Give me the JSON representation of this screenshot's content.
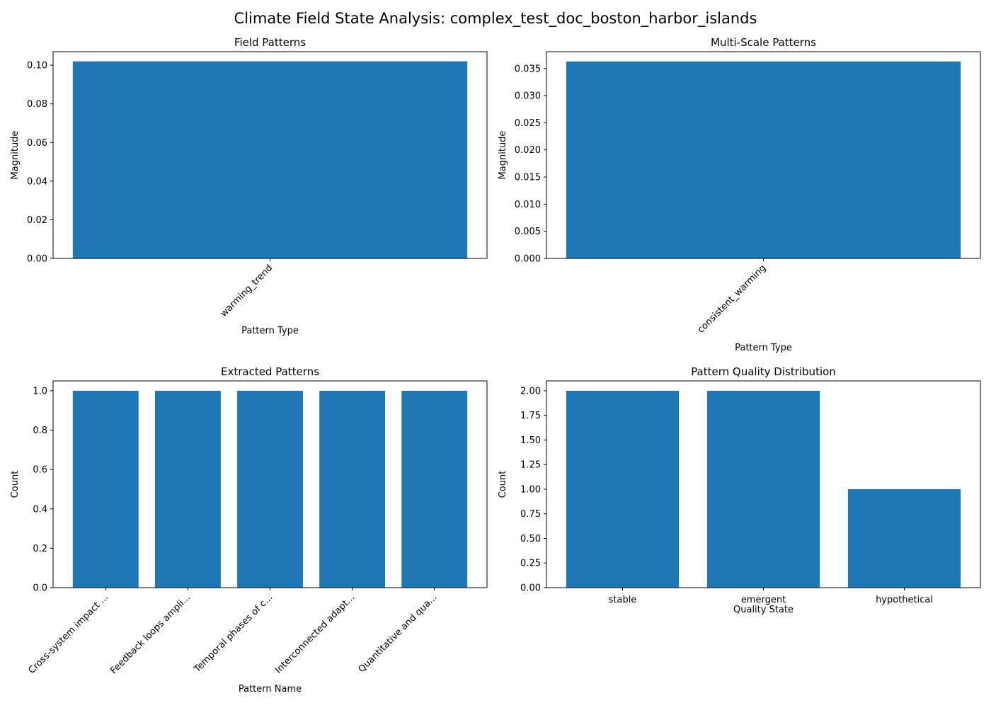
{
  "figure": {
    "suptitle": "Climate Field State Analysis: complex_test_doc_boston_harbor_islands",
    "bar_color": "#1f77b4"
  },
  "chart_data": [
    {
      "type": "bar",
      "title": "Field Patterns",
      "xlabel": "Pattern Type",
      "ylabel": "Magnitude",
      "categories": [
        "warming_trend"
      ],
      "values": [
        0.102
      ],
      "ylim": [
        0,
        0.107
      ],
      "yticks": [
        0.0,
        0.02,
        0.04,
        0.06,
        0.08,
        0.1
      ],
      "ytick_labels": [
        "0.00",
        "0.02",
        "0.04",
        "0.06",
        "0.08",
        "0.10"
      ],
      "xtick_rotation": 45,
      "grid": false
    },
    {
      "type": "bar",
      "title": "Multi-Scale Patterns",
      "xlabel": "Pattern Type",
      "ylabel": "Magnitude",
      "categories": [
        "consistent_warming"
      ],
      "values": [
        0.0363
      ],
      "ylim": [
        0,
        0.0381
      ],
      "yticks": [
        0.0,
        0.005,
        0.01,
        0.015,
        0.02,
        0.025,
        0.03,
        0.035
      ],
      "ytick_labels": [
        "0.000",
        "0.005",
        "0.010",
        "0.015",
        "0.020",
        "0.025",
        "0.030",
        "0.035"
      ],
      "xtick_rotation": 45,
      "grid": false
    },
    {
      "type": "bar",
      "title": "Extracted Patterns",
      "xlabel": "Pattern Name",
      "ylabel": "Count",
      "categories": [
        "Cross-system impact ...",
        "Feedback loops ampli...",
        "Temporal phases of c...",
        "Interconnected adapt...",
        "Quantitative and qua..."
      ],
      "values": [
        1,
        1,
        1,
        1,
        1
      ],
      "ylim": [
        0,
        1.05
      ],
      "yticks": [
        0.0,
        0.2,
        0.4,
        0.6,
        0.8,
        1.0
      ],
      "ytick_labels": [
        "0.0",
        "0.2",
        "0.4",
        "0.6",
        "0.8",
        "1.0"
      ],
      "xtick_rotation": 45,
      "grid": false
    },
    {
      "type": "bar",
      "title": "Pattern Quality Distribution",
      "xlabel": "Quality State",
      "ylabel": "Count",
      "categories": [
        "stable",
        "emergent",
        "hypothetical"
      ],
      "values": [
        2,
        2,
        1
      ],
      "ylim": [
        0,
        2.1
      ],
      "yticks": [
        0.0,
        0.25,
        0.5,
        0.75,
        1.0,
        1.25,
        1.5,
        1.75,
        2.0
      ],
      "ytick_labels": [
        "0.00",
        "0.25",
        "0.50",
        "0.75",
        "1.00",
        "1.25",
        "1.50",
        "1.75",
        "2.00"
      ],
      "xtick_rotation": 0,
      "grid": false
    }
  ]
}
